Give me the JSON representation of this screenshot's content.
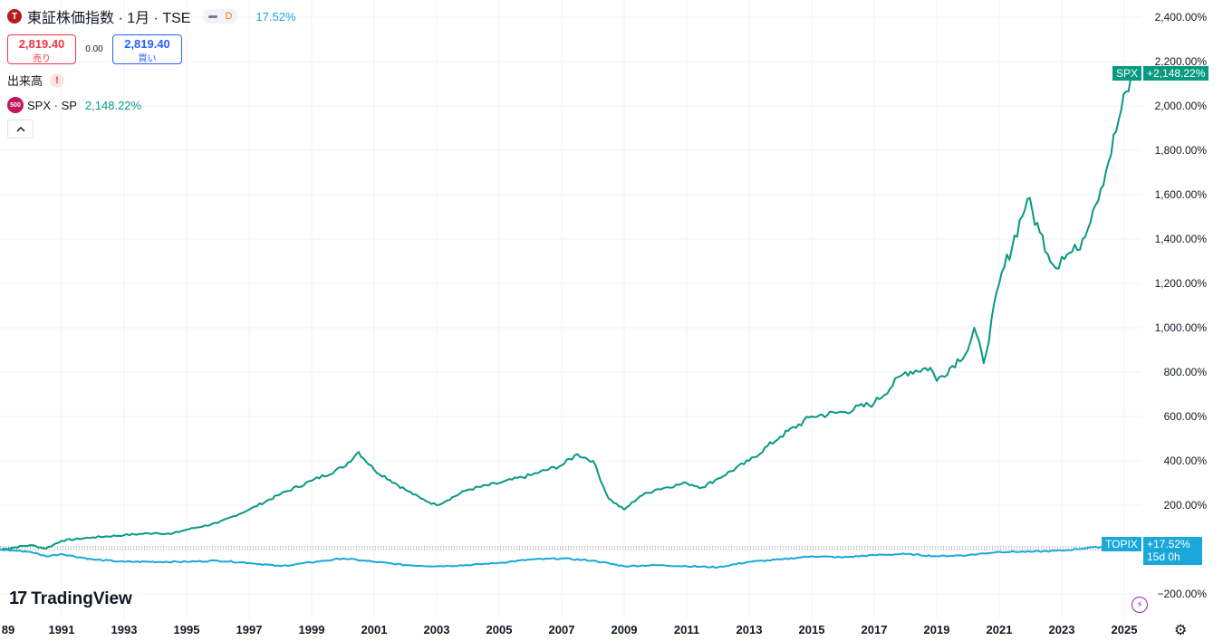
{
  "header": {
    "symbol_badge": "T",
    "title": "東証株価指数 · 1月 · TSE",
    "interval_badge": "D",
    "change_pct": "17.52%"
  },
  "trade": {
    "sell_price": "2,819.40",
    "sell_label": "売り",
    "spread": "0.00",
    "buy_price": "2,819.40",
    "buy_label": "買い"
  },
  "volume": {
    "label": "出来高",
    "warning": "!"
  },
  "compare": {
    "badge": "500",
    "name": "SPX · SP",
    "change_pct": "2,148.22%"
  },
  "collapse_icon": "chevron-up-icon",
  "axis": {
    "price_labels": [
      "2,400.00%",
      "2,200.00%",
      "2,000.00%",
      "1,800.00%",
      "1,600.00%",
      "1,400.00%",
      "1,200.00%",
      "1,000.00%",
      "800.00%",
      "600.00%",
      "400.00%",
      "200.00%",
      "−200.00%"
    ],
    "time_labels": [
      "89",
      "1991",
      "1993",
      "1995",
      "1997",
      "1999",
      "2001",
      "2003",
      "2005",
      "2007",
      "2009",
      "2011",
      "2013",
      "2015",
      "2017",
      "2019",
      "2021",
      "2023",
      "2025"
    ]
  },
  "tags": {
    "spx_name": "SPX",
    "spx_value": "+2,148.22%",
    "topix_name": "TOPIX",
    "topix_value": "+17.52%",
    "topix_countdown": "15d 0h"
  },
  "logo": {
    "mark": "17",
    "text": "TradingView"
  },
  "colors": {
    "spx": "#089981",
    "topix": "#1aa7d9",
    "sell": "#f23645",
    "buy": "#2962ff"
  },
  "chart_data": {
    "type": "line",
    "ylim": [
      -230,
      2400
    ],
    "x_range": [
      1989,
      2025.5
    ],
    "series": [
      {
        "name": "SPX",
        "x": [
          1989,
          1990,
          1990.5,
          1991,
          1992,
          1993,
          1994,
          1994.5,
          1995,
          1996,
          1997,
          1998,
          1999,
          2000,
          2000.5,
          2001,
          2002,
          2002.5,
          2003,
          2004,
          2005,
          2006,
          2007,
          2007.5,
          2008,
          2008.5,
          2009,
          2009.5,
          2010,
          2011,
          2011.5,
          2012,
          2013,
          2014,
          2015,
          2016,
          2017,
          2018,
          2018.8,
          2019,
          2020,
          2020.2,
          2020.5,
          2021,
          2021.9,
          2022.3,
          2022.8,
          2023,
          2023.5,
          2024,
          2024.5,
          2024.9,
          2025.3
        ],
        "values": [
          0,
          20,
          5,
          40,
          55,
          65,
          75,
          70,
          90,
          120,
          180,
          250,
          310,
          370,
          440,
          360,
          270,
          230,
          200,
          270,
          300,
          335,
          380,
          430,
          400,
          230,
          180,
          240,
          270,
          300,
          280,
          320,
          400,
          510,
          600,
          620,
          660,
          800,
          820,
          760,
          900,
          1000,
          840,
          1200,
          1580,
          1430,
          1270,
          1320,
          1350,
          1530,
          1750,
          1980,
          2148
        ]
      },
      {
        "name": "TOPIX",
        "x": [
          1989,
          1990,
          1990.5,
          1991,
          1992,
          1993,
          1995,
          1996,
          1997,
          1998,
          2000,
          2001,
          2002,
          2003,
          2004,
          2005,
          2006,
          2007,
          2008,
          2009,
          2010,
          2011,
          2012,
          2013,
          2014,
          2015,
          2016,
          2017,
          2018,
          2019,
          2020,
          2021,
          2022,
          2023,
          2024,
          2025.3
        ],
        "values": [
          0,
          -10,
          -30,
          -20,
          -45,
          -55,
          -55,
          -50,
          -60,
          -75,
          -40,
          -55,
          -70,
          -75,
          -70,
          -60,
          -45,
          -40,
          -50,
          -75,
          -70,
          -75,
          -80,
          -55,
          -45,
          -30,
          -35,
          -25,
          -20,
          -30,
          -25,
          -10,
          -10,
          -5,
          10,
          17.52
        ]
      }
    ]
  }
}
